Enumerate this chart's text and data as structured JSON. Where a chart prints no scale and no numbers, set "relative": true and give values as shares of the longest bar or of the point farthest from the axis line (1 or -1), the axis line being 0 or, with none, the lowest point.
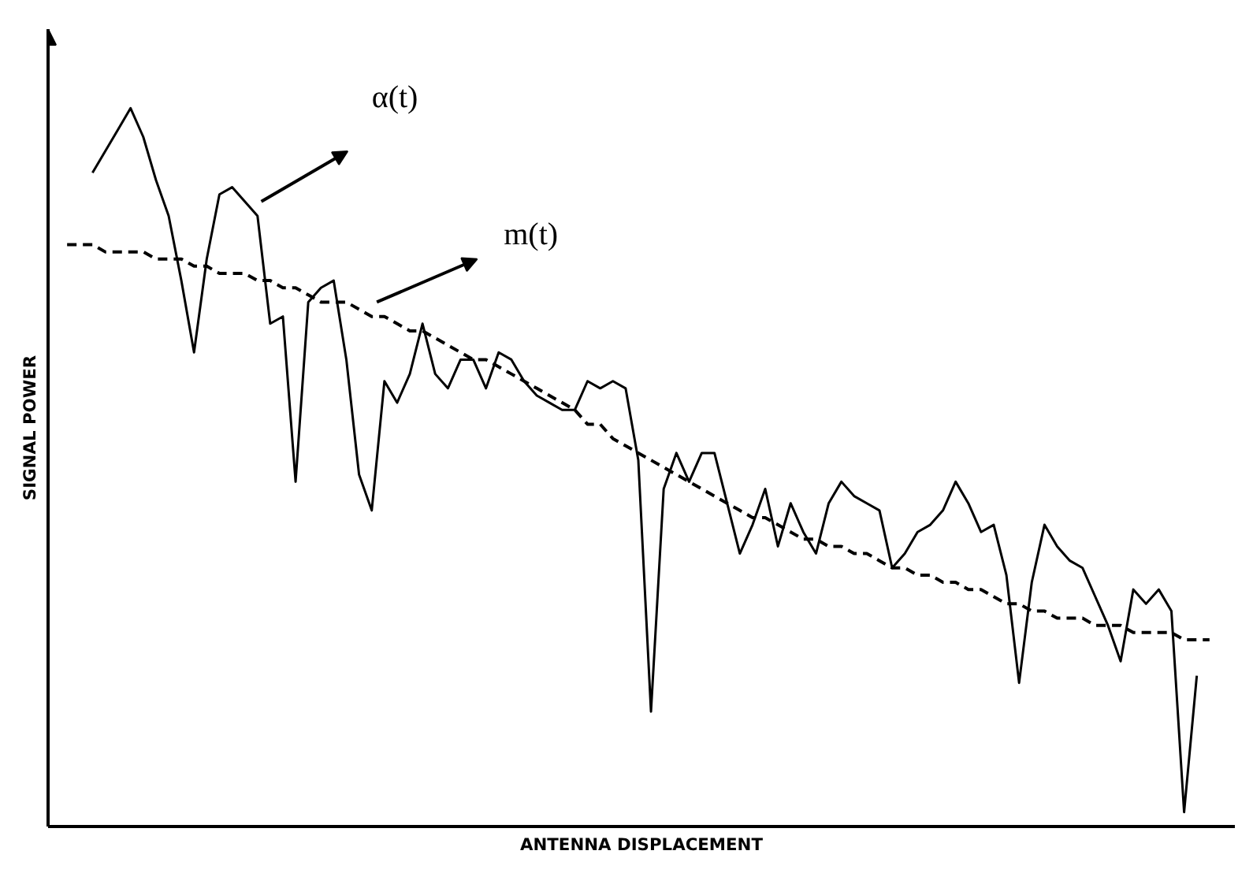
{
  "chart_data": {
    "type": "line",
    "relative": true,
    "xlabel": "ANTENNA DISPLACEMENT",
    "ylabel": "SIGNAL POWER",
    "categories": [
      null,
      null,
      null,
      null,
      null,
      null,
      null,
      null,
      null,
      null,
      null,
      null,
      null,
      null,
      null,
      null,
      null,
      null,
      null,
      null,
      null,
      null,
      null,
      null,
      null,
      null,
      null,
      null,
      null,
      null,
      null,
      null,
      null,
      null,
      null,
      null,
      null,
      null,
      null,
      null,
      null,
      null,
      null,
      null,
      null,
      null,
      null,
      null,
      null,
      null,
      null,
      null,
      null,
      null,
      null,
      null,
      null,
      null,
      null,
      null,
      null,
      null,
      null,
      null,
      null,
      null,
      null,
      null,
      null,
      null,
      null,
      null,
      null,
      null,
      null,
      null,
      null,
      null,
      null,
      null,
      null,
      null,
      null,
      null,
      null,
      null,
      null,
      null,
      null,
      null,
      null
    ],
    "series": [
      {
        "color": "#000000",
        "line_style": "solid",
        "values": [
          null,
          null,
          0.91,
          0.94,
          0.97,
          1.0,
          0.96,
          0.9,
          0.85,
          0.76,
          0.66,
          0.79,
          0.88,
          0.89,
          0.87,
          0.85,
          0.7,
          0.71,
          0.48,
          0.73,
          0.75,
          0.76,
          0.65,
          0.49,
          0.44,
          0.62,
          0.59,
          0.63,
          0.7,
          0.63,
          0.61,
          0.65,
          0.65,
          0.61,
          0.66,
          0.65,
          0.62,
          0.6,
          0.59,
          0.58,
          0.58,
          0.62,
          0.61,
          0.62,
          0.61,
          0.51,
          0.16,
          0.47,
          0.52,
          0.48,
          0.52,
          0.52,
          0.45,
          0.38,
          0.42,
          0.47,
          0.39,
          0.45,
          0.41,
          0.38,
          0.45,
          0.48,
          0.46,
          0.45,
          0.44,
          0.36,
          0.38,
          0.41,
          0.42,
          0.44,
          0.48,
          0.45,
          0.41,
          0.42,
          0.35,
          0.2,
          0.34,
          0.42,
          0.39,
          0.37,
          0.36,
          0.32,
          0.28,
          0.23,
          0.33,
          0.31,
          0.33,
          0.3,
          0.02,
          0.21,
          null
        ]
      },
      {
        "color": "#000000",
        "line_style": "dashed",
        "values": [
          0.81,
          0.81,
          0.81,
          0.8,
          0.8,
          0.8,
          0.8,
          0.79,
          0.79,
          0.79,
          0.78,
          0.78,
          0.77,
          0.77,
          0.77,
          0.76,
          0.76,
          0.75,
          0.75,
          0.74,
          0.73,
          0.73,
          0.73,
          0.72,
          0.71,
          0.71,
          0.7,
          0.69,
          0.69,
          0.68,
          0.67,
          0.66,
          0.65,
          0.65,
          0.64,
          0.63,
          0.62,
          0.61,
          0.6,
          0.59,
          0.58,
          0.56,
          0.56,
          0.54,
          0.53,
          0.52,
          0.51,
          0.5,
          0.49,
          0.48,
          0.47,
          0.46,
          0.45,
          0.44,
          0.43,
          0.43,
          0.42,
          0.41,
          0.4,
          0.4,
          0.39,
          0.39,
          0.38,
          0.38,
          0.37,
          0.36,
          0.36,
          0.35,
          0.35,
          0.34,
          0.34,
          0.33,
          0.33,
          0.32,
          0.31,
          0.31,
          0.3,
          0.3,
          0.29,
          0.29,
          0.29,
          0.28,
          0.28,
          0.28,
          0.27,
          0.27,
          0.27,
          0.27,
          0.26,
          0.26,
          0.26
        ]
      }
    ],
    "annotations": [
      "α(t)",
      "m(t)"
    ],
    "legend": false
  }
}
